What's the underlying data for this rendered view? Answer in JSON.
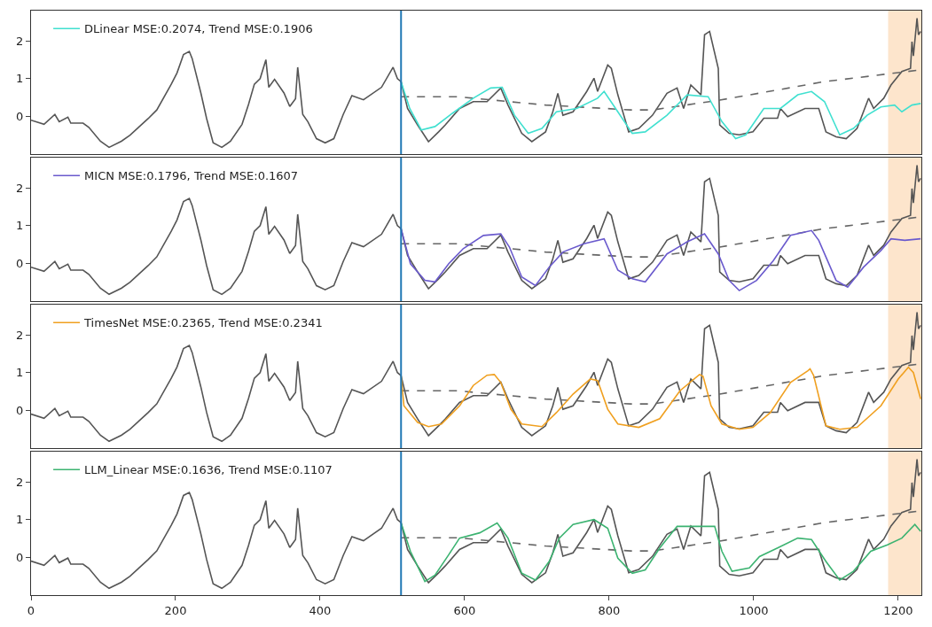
{
  "chart_data": [
    {
      "type": "line",
      "xlim": [
        0,
        1232
      ],
      "ylim": [
        -1.0,
        2.8
      ],
      "yticks": [
        0,
        1,
        2
      ],
      "tick_labels": "y",
      "legend": "top left",
      "grid": false,
      "ref_lines": [
        {
          "axis": "x",
          "value": 512,
          "color": "#1f77b4"
        }
      ],
      "bands": [
        {
          "axis": "x",
          "from": 1186,
          "to": 1232,
          "color": "#fde5cc"
        }
      ],
      "series": [
        {
          "color": "#555555",
          "line_style": "solid",
          "x": [
            0,
            18,
            33,
            39,
            51,
            55,
            72,
            80,
            96,
            108,
            125,
            137,
            162,
            174,
            194,
            202,
            211,
            219,
            223,
            235,
            243,
            252,
            264,
            276,
            292,
            301,
            309,
            317,
            325,
            329,
            337,
            350,
            358,
            366,
            369,
            376,
            383,
            395,
            407,
            419,
            432,
            444,
            460,
            485,
            501,
            507,
            512,
            521,
            535,
            550,
            564,
            573,
            593,
            612,
            631,
            650,
            660,
            679,
            693,
            712,
            722,
            729,
            736,
            750,
            769,
            779,
            784,
            798,
            803,
            812,
            827,
            841,
            860,
            880,
            894,
            903,
            913,
            927,
            932,
            939,
            951,
            953,
            966,
            980,
            999,
            1014,
            1033,
            1037,
            1047,
            1071,
            1090,
            1100,
            1114,
            1128,
            1143,
            1159,
            1166,
            1180,
            1190,
            1205,
            1217,
            1219,
            1221,
            1226,
            1228,
            1231
          ],
          "values": [
            -0.1,
            -0.21,
            0.05,
            -0.14,
            -0.02,
            -0.18,
            -0.18,
            -0.29,
            -0.66,
            -0.82,
            -0.66,
            -0.5,
            -0.06,
            0.17,
            0.85,
            1.15,
            1.64,
            1.72,
            1.53,
            0.62,
            -0.06,
            -0.7,
            -0.82,
            -0.66,
            -0.21,
            0.32,
            0.85,
            1.0,
            1.5,
            0.77,
            0.98,
            0.62,
            0.26,
            0.47,
            1.3,
            0.05,
            -0.14,
            -0.59,
            -0.7,
            -0.59,
            0.05,
            0.55,
            0.44,
            0.77,
            1.3,
            1.0,
            0.92,
            0.21,
            -0.23,
            -0.67,
            -0.41,
            -0.23,
            0.21,
            0.39,
            0.39,
            0.75,
            0.3,
            -0.45,
            -0.67,
            -0.41,
            0.12,
            0.61,
            0.03,
            0.12,
            0.66,
            1.01,
            0.66,
            1.36,
            1.27,
            0.57,
            -0.41,
            -0.32,
            0.03,
            0.61,
            0.75,
            0.21,
            0.83,
            0.57,
            2.16,
            2.25,
            1.27,
            -0.23,
            -0.45,
            -0.49,
            -0.41,
            -0.05,
            -0.05,
            0.21,
            -0.01,
            0.21,
            0.21,
            -0.41,
            -0.54,
            -0.59,
            -0.32,
            0.48,
            0.21,
            0.48,
            0.83,
            1.19,
            1.27,
            1.98,
            1.6,
            2.6,
            2.16,
            2.25
          ]
        },
        {
          "color": "#666666",
          "line_style": "dashed",
          "x": [
            512,
            590,
            712,
            830,
            860,
            953,
            1030,
            1098,
            1231
          ],
          "values": [
            0.52,
            0.52,
            0.3,
            0.17,
            0.17,
            0.43,
            0.69,
            0.92,
            1.23
          ]
        },
        {
          "name": "DLinear MSE:0.2074, Trend MSE:0.1906",
          "color": "#40e0d0",
          "line_style": "solid",
          "x": [
            512,
            524,
            540,
            559,
            583,
            612,
            636,
            652,
            669,
            688,
            707,
            727,
            755,
            784,
            793,
            812,
            832,
            850,
            880,
            908,
            937,
            956,
            975,
            989,
            1014,
            1037,
            1061,
            1080,
            1098,
            1119,
            1138,
            1157,
            1176,
            1195,
            1205,
            1219,
            1231
          ],
          "values": [
            0.92,
            0.21,
            -0.36,
            -0.27,
            0.08,
            0.48,
            0.75,
            0.77,
            0.03,
            -0.45,
            -0.32,
            0.12,
            0.21,
            0.48,
            0.66,
            0.12,
            -0.45,
            -0.41,
            0.03,
            0.57,
            0.52,
            -0.14,
            -0.59,
            -0.49,
            0.21,
            0.21,
            0.57,
            0.66,
            0.39,
            -0.49,
            -0.32,
            0.03,
            0.25,
            0.3,
            0.12,
            0.3,
            0.34
          ]
        }
      ]
    },
    {
      "type": "line",
      "xlim": [
        0,
        1232
      ],
      "ylim": [
        -1.0,
        2.8
      ],
      "yticks": [
        0,
        1,
        2
      ],
      "tick_labels": "y",
      "legend": "top left",
      "grid": false,
      "ref_lines": [
        {
          "axis": "x",
          "value": 512,
          "color": "#1f77b4"
        }
      ],
      "bands": [
        {
          "axis": "x",
          "from": 1186,
          "to": 1232,
          "color": "#fde5cc"
        }
      ],
      "series": [
        {
          "color": "#555555",
          "line_style": "solid",
          "x": [
            0,
            18,
            33,
            39,
            51,
            55,
            72,
            80,
            96,
            108,
            125,
            137,
            162,
            174,
            194,
            202,
            211,
            219,
            223,
            235,
            243,
            252,
            264,
            276,
            292,
            301,
            309,
            317,
            325,
            329,
            337,
            350,
            358,
            366,
            369,
            376,
            383,
            395,
            407,
            419,
            432,
            444,
            460,
            485,
            501,
            507,
            512,
            521,
            535,
            550,
            564,
            573,
            593,
            612,
            631,
            650,
            660,
            679,
            693,
            712,
            722,
            729,
            736,
            750,
            769,
            779,
            784,
            798,
            803,
            812,
            827,
            841,
            860,
            880,
            894,
            903,
            913,
            927,
            932,
            939,
            951,
            953,
            966,
            980,
            999,
            1014,
            1033,
            1037,
            1047,
            1071,
            1090,
            1100,
            1114,
            1128,
            1143,
            1159,
            1166,
            1180,
            1190,
            1205,
            1217,
            1219,
            1221,
            1226,
            1228,
            1231
          ],
          "values": [
            -0.1,
            -0.21,
            0.05,
            -0.14,
            -0.02,
            -0.18,
            -0.18,
            -0.29,
            -0.66,
            -0.82,
            -0.66,
            -0.5,
            -0.06,
            0.17,
            0.85,
            1.15,
            1.64,
            1.72,
            1.53,
            0.62,
            -0.06,
            -0.7,
            -0.82,
            -0.66,
            -0.21,
            0.32,
            0.85,
            1.0,
            1.5,
            0.77,
            0.98,
            0.62,
            0.26,
            0.47,
            1.3,
            0.05,
            -0.14,
            -0.59,
            -0.7,
            -0.59,
            0.05,
            0.55,
            0.44,
            0.77,
            1.3,
            1.0,
            0.92,
            0.21,
            -0.23,
            -0.67,
            -0.41,
            -0.23,
            0.21,
            0.39,
            0.39,
            0.75,
            0.3,
            -0.45,
            -0.67,
            -0.41,
            0.12,
            0.61,
            0.03,
            0.12,
            0.66,
            1.01,
            0.66,
            1.36,
            1.27,
            0.57,
            -0.41,
            -0.32,
            0.03,
            0.61,
            0.75,
            0.21,
            0.83,
            0.57,
            2.16,
            2.25,
            1.27,
            -0.23,
            -0.45,
            -0.49,
            -0.41,
            -0.05,
            -0.05,
            0.21,
            -0.01,
            0.21,
            0.21,
            -0.41,
            -0.54,
            -0.59,
            -0.32,
            0.48,
            0.21,
            0.48,
            0.83,
            1.19,
            1.27,
            1.98,
            1.6,
            2.6,
            2.16,
            2.25
          ]
        },
        {
          "color": "#666666",
          "line_style": "dashed",
          "x": [
            512,
            590,
            712,
            830,
            860,
            953,
            1030,
            1098,
            1231
          ],
          "values": [
            0.52,
            0.52,
            0.3,
            0.17,
            0.17,
            0.43,
            0.69,
            0.92,
            1.23
          ]
        },
        {
          "name": "MICN MSE:0.1796, Trend MSE:0.1607",
          "color": "#6a5acd",
          "line_style": "solid",
          "x": [
            512,
            525,
            545,
            559,
            578,
            598,
            626,
            650,
            662,
            679,
            698,
            717,
            736,
            765,
            793,
            812,
            832,
            850,
            880,
            908,
            932,
            951,
            966,
            980,
            1004,
            1027,
            1051,
            1080,
            1090,
            1114,
            1130,
            1152,
            1176,
            1190,
            1209,
            1231
          ],
          "values": [
            0.92,
            -0.01,
            -0.45,
            -0.49,
            -0.01,
            0.39,
            0.74,
            0.78,
            0.43,
            -0.36,
            -0.59,
            -0.1,
            0.3,
            0.52,
            0.65,
            -0.18,
            -0.41,
            -0.49,
            0.25,
            0.57,
            0.78,
            0.25,
            -0.45,
            -0.72,
            -0.45,
            0.07,
            0.74,
            0.87,
            0.61,
            -0.45,
            -0.63,
            -0.1,
            0.34,
            0.65,
            0.61,
            0.65
          ]
        }
      ]
    },
    {
      "type": "line",
      "xlim": [
        0,
        1232
      ],
      "ylim": [
        -1.0,
        2.8
      ],
      "yticks": [
        0,
        1,
        2
      ],
      "tick_labels": "y",
      "legend": "top left",
      "grid": false,
      "ref_lines": [
        {
          "axis": "x",
          "value": 512,
          "color": "#1f77b4"
        }
      ],
      "bands": [
        {
          "axis": "x",
          "from": 1186,
          "to": 1232,
          "color": "#fde5cc"
        }
      ],
      "series": [
        {
          "color": "#555555",
          "line_style": "solid",
          "x": [
            0,
            18,
            33,
            39,
            51,
            55,
            72,
            80,
            96,
            108,
            125,
            137,
            162,
            174,
            194,
            202,
            211,
            219,
            223,
            235,
            243,
            252,
            264,
            276,
            292,
            301,
            309,
            317,
            325,
            329,
            337,
            350,
            358,
            366,
            369,
            376,
            383,
            395,
            407,
            419,
            432,
            444,
            460,
            485,
            501,
            507,
            512,
            521,
            535,
            550,
            564,
            573,
            593,
            612,
            631,
            650,
            660,
            679,
            693,
            712,
            722,
            729,
            736,
            750,
            769,
            779,
            784,
            798,
            803,
            812,
            827,
            841,
            860,
            880,
            894,
            903,
            913,
            927,
            932,
            939,
            951,
            953,
            966,
            980,
            999,
            1014,
            1033,
            1037,
            1047,
            1071,
            1090,
            1100,
            1114,
            1128,
            1143,
            1159,
            1166,
            1180,
            1190,
            1205,
            1217,
            1219,
            1221,
            1226,
            1228,
            1231
          ],
          "values": [
            -0.1,
            -0.21,
            0.05,
            -0.14,
            -0.02,
            -0.18,
            -0.18,
            -0.29,
            -0.66,
            -0.82,
            -0.66,
            -0.5,
            -0.06,
            0.17,
            0.85,
            1.15,
            1.64,
            1.72,
            1.53,
            0.62,
            -0.06,
            -0.7,
            -0.82,
            -0.66,
            -0.21,
            0.32,
            0.85,
            1.0,
            1.5,
            0.77,
            0.98,
            0.62,
            0.26,
            0.47,
            1.3,
            0.05,
            -0.14,
            -0.59,
            -0.7,
            -0.59,
            0.05,
            0.55,
            0.44,
            0.77,
            1.3,
            1.0,
            0.92,
            0.21,
            -0.23,
            -0.67,
            -0.41,
            -0.23,
            0.21,
            0.39,
            0.39,
            0.75,
            0.3,
            -0.45,
            -0.67,
            -0.41,
            0.12,
            0.61,
            0.03,
            0.12,
            0.66,
            1.01,
            0.66,
            1.36,
            1.27,
            0.57,
            -0.41,
            -0.32,
            0.03,
            0.61,
            0.75,
            0.21,
            0.83,
            0.57,
            2.16,
            2.25,
            1.27,
            -0.23,
            -0.45,
            -0.49,
            -0.41,
            -0.05,
            -0.05,
            0.21,
            -0.01,
            0.21,
            0.21,
            -0.41,
            -0.54,
            -0.59,
            -0.32,
            0.48,
            0.21,
            0.48,
            0.83,
            1.19,
            1.27,
            1.98,
            1.6,
            2.6,
            2.16,
            2.25
          ]
        },
        {
          "color": "#666666",
          "line_style": "dashed",
          "x": [
            512,
            590,
            712,
            830,
            860,
            953,
            1030,
            1098,
            1231
          ],
          "values": [
            0.52,
            0.52,
            0.3,
            0.17,
            0.17,
            0.43,
            0.69,
            0.92,
            1.23
          ]
        },
        {
          "name": "TimesNet MSE:0.2365, Trend MSE:0.2341",
          "color": "#f0a020",
          "line_style": "solid",
          "x": [
            512,
            516,
            535,
            550,
            568,
            593,
            612,
            631,
            641,
            650,
            664,
            679,
            707,
            727,
            750,
            774,
            784,
            798,
            812,
            841,
            870,
            898,
            925,
            930,
            941,
            956,
            980,
            999,
            1023,
            1051,
            1075,
            1078,
            1083,
            1100,
            1119,
            1143,
            1176,
            1200,
            1214,
            1221,
            1231
          ],
          "values": [
            0.92,
            0.12,
            -0.32,
            -0.43,
            -0.36,
            0.12,
            0.66,
            0.93,
            0.95,
            0.74,
            0.03,
            -0.36,
            -0.43,
            -0.06,
            0.43,
            0.83,
            0.79,
            0.03,
            -0.36,
            -0.45,
            -0.22,
            0.52,
            0.95,
            0.9,
            0.12,
            -0.36,
            -0.5,
            -0.45,
            -0.06,
            0.74,
            1.05,
            1.1,
            0.92,
            -0.41,
            -0.5,
            -0.45,
            0.12,
            0.83,
            1.14,
            1.0,
            0.3
          ]
        }
      ]
    },
    {
      "type": "line",
      "xlim": [
        0,
        1232
      ],
      "xticks": [
        0,
        200,
        400,
        600,
        800,
        1000,
        1200
      ],
      "ylim": [
        -1.0,
        2.8
      ],
      "yticks": [
        0,
        1,
        2
      ],
      "legend": "top left",
      "grid": false,
      "ref_lines": [
        {
          "axis": "x",
          "value": 512,
          "color": "#1f77b4"
        }
      ],
      "bands": [
        {
          "axis": "x",
          "from": 1186,
          "to": 1232,
          "color": "#fde5cc"
        }
      ],
      "series": [
        {
          "color": "#555555",
          "line_style": "solid",
          "x": [
            0,
            18,
            33,
            39,
            51,
            55,
            72,
            80,
            96,
            108,
            125,
            137,
            162,
            174,
            194,
            202,
            211,
            219,
            223,
            235,
            243,
            252,
            264,
            276,
            292,
            301,
            309,
            317,
            325,
            329,
            337,
            350,
            358,
            366,
            369,
            376,
            383,
            395,
            407,
            419,
            432,
            444,
            460,
            485,
            501,
            507,
            512,
            521,
            535,
            550,
            564,
            573,
            593,
            612,
            631,
            650,
            660,
            679,
            693,
            712,
            722,
            729,
            736,
            750,
            769,
            779,
            784,
            798,
            803,
            812,
            827,
            841,
            860,
            880,
            894,
            903,
            913,
            927,
            932,
            939,
            951,
            953,
            966,
            980,
            999,
            1014,
            1033,
            1037,
            1047,
            1071,
            1090,
            1100,
            1114,
            1128,
            1143,
            1159,
            1166,
            1180,
            1190,
            1205,
            1217,
            1219,
            1221,
            1226,
            1228,
            1231
          ],
          "values": [
            -0.1,
            -0.21,
            0.05,
            -0.14,
            -0.02,
            -0.18,
            -0.18,
            -0.29,
            -0.66,
            -0.82,
            -0.66,
            -0.5,
            -0.06,
            0.17,
            0.85,
            1.15,
            1.64,
            1.72,
            1.53,
            0.62,
            -0.06,
            -0.7,
            -0.82,
            -0.66,
            -0.21,
            0.32,
            0.85,
            1.0,
            1.5,
            0.77,
            0.98,
            0.62,
            0.26,
            0.47,
            1.3,
            0.05,
            -0.14,
            -0.59,
            -0.7,
            -0.59,
            0.05,
            0.55,
            0.44,
            0.77,
            1.3,
            1.0,
            0.92,
            0.21,
            -0.23,
            -0.67,
            -0.41,
            -0.23,
            0.21,
            0.39,
            0.39,
            0.75,
            0.3,
            -0.45,
            -0.67,
            -0.41,
            0.12,
            0.61,
            0.03,
            0.12,
            0.66,
            1.01,
            0.66,
            1.36,
            1.27,
            0.57,
            -0.41,
            -0.32,
            0.03,
            0.61,
            0.75,
            0.21,
            0.83,
            0.57,
            2.16,
            2.25,
            1.27,
            -0.23,
            -0.45,
            -0.49,
            -0.41,
            -0.05,
            -0.05,
            0.21,
            -0.01,
            0.21,
            0.21,
            -0.41,
            -0.54,
            -0.59,
            -0.32,
            0.48,
            0.21,
            0.48,
            0.83,
            1.19,
            1.27,
            1.98,
            1.6,
            2.6,
            2.16,
            2.25
          ]
        },
        {
          "color": "#666666",
          "line_style": "dashed",
          "x": [
            512,
            590,
            712,
            830,
            860,
            953,
            1030,
            1098,
            1231
          ],
          "values": [
            0.52,
            0.52,
            0.3,
            0.17,
            0.17,
            0.43,
            0.69,
            0.92,
            1.23
          ]
        },
        {
          "name": "LLM_Linear MSE:0.1636, Trend MSE:0.1107",
          "color": "#3cb371",
          "line_style": "solid",
          "x": [
            512,
            525,
            545,
            559,
            578,
            593,
            621,
            645,
            660,
            679,
            698,
            717,
            731,
            750,
            779,
            798,
            812,
            832,
            850,
            870,
            894,
            918,
            946,
            956,
            970,
            994,
            1008,
            1033,
            1061,
            1080,
            1100,
            1119,
            1138,
            1162,
            1185,
            1205,
            1223,
            1231
          ],
          "values": [
            0.91,
            0.16,
            -0.64,
            -0.47,
            0.07,
            0.51,
            0.65,
            0.91,
            0.51,
            -0.42,
            -0.6,
            -0.11,
            0.51,
            0.87,
            1.0,
            0.77,
            -0.02,
            -0.42,
            -0.33,
            0.25,
            0.82,
            0.82,
            0.82,
            0.16,
            -0.37,
            -0.28,
            0.02,
            0.25,
            0.51,
            0.47,
            -0.11,
            -0.6,
            -0.37,
            0.16,
            0.33,
            0.51,
            0.87,
            0.69
          ]
        }
      ]
    }
  ]
}
